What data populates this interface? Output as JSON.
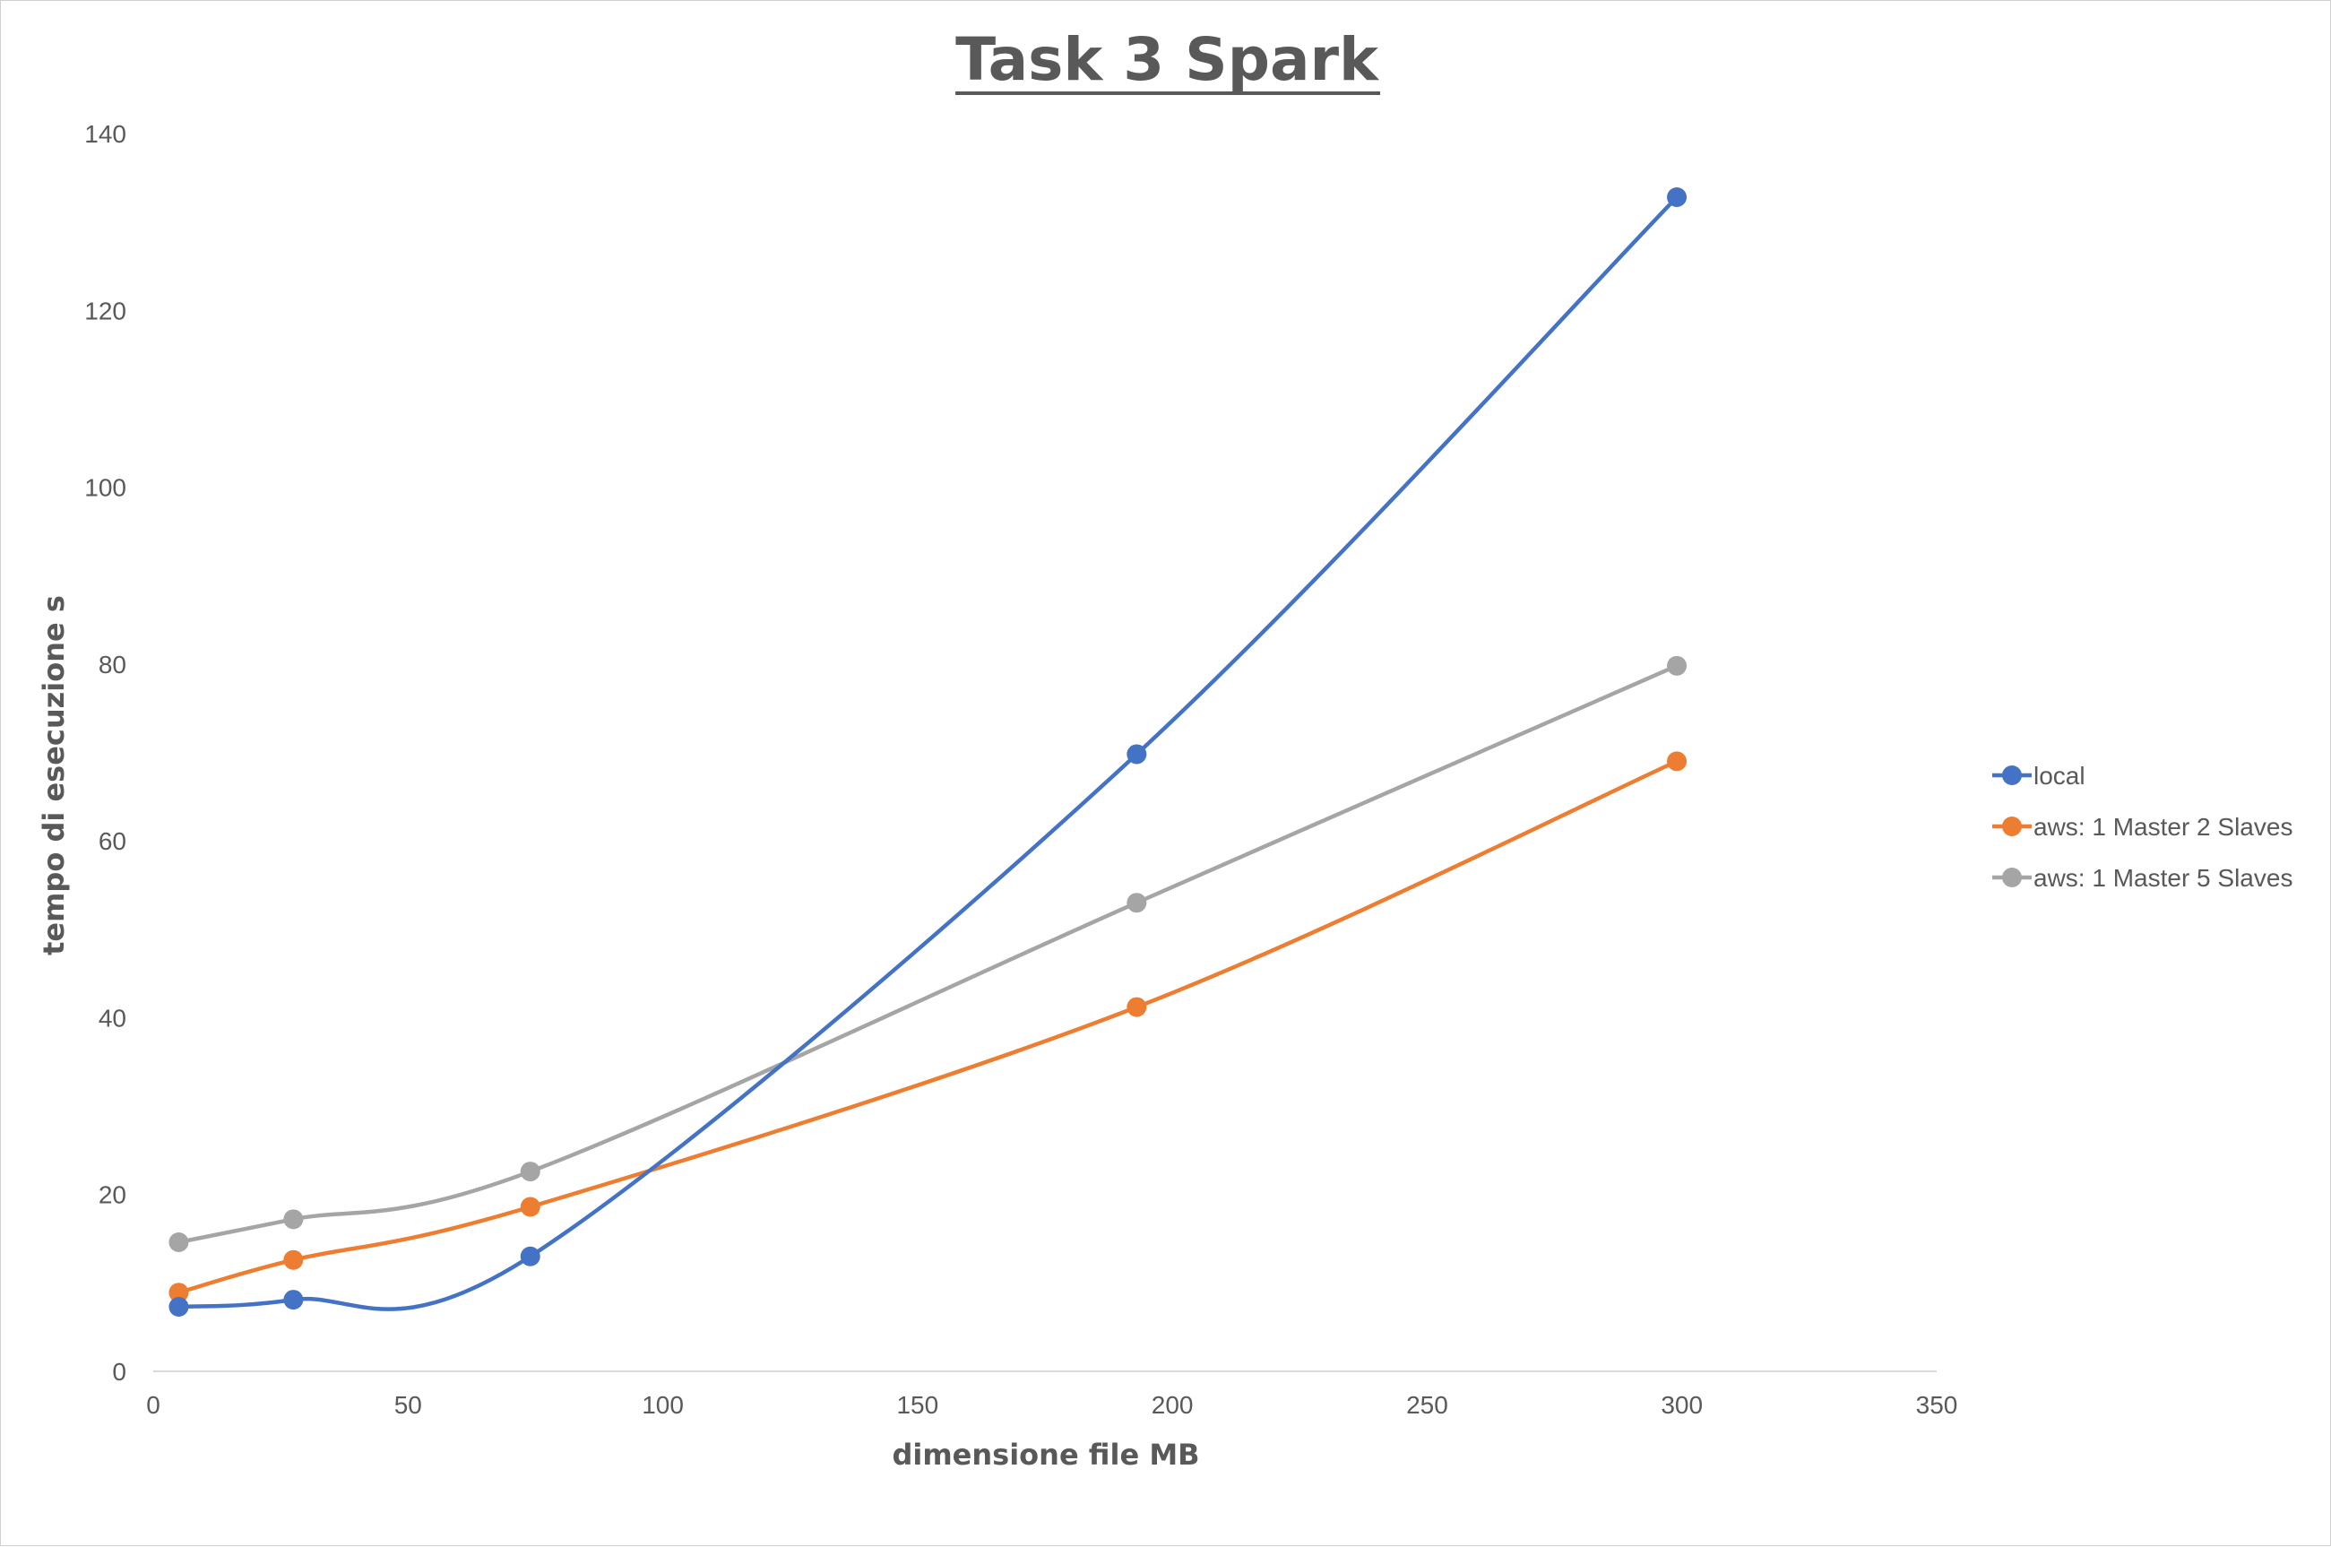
{
  "chart_data": {
    "type": "scatter",
    "title": "Task 3 Spark",
    "xlabel": "dimensione file MB",
    "ylabel": "tempo di esecuzione s",
    "xlim": [
      0,
      350
    ],
    "ylim": [
      0,
      140
    ],
    "xticks": [
      0,
      50,
      100,
      150,
      200,
      250,
      300,
      350
    ],
    "yticks": [
      0,
      20,
      40,
      60,
      80,
      100,
      120,
      140
    ],
    "grid": false,
    "legend_position": "right",
    "smooth_lines": true,
    "series": [
      {
        "name": "local",
        "color": "#4472c4",
        "x": [
          5,
          27.5,
          74,
          193,
          299
        ],
        "y": [
          7.3,
          8.1,
          13,
          69.8,
          132.8
        ]
      },
      {
        "name": "aws: 1 Master 2 Slaves",
        "color": "#ed7d31",
        "x": [
          5,
          27.5,
          74,
          193,
          299
        ],
        "y": [
          8.9,
          12.6,
          18.6,
          41.2,
          69
        ]
      },
      {
        "name": "aws: 1 Master 5 Slaves",
        "color": "#a5a5a5",
        "x": [
          5,
          27.5,
          74,
          193,
          299
        ],
        "y": [
          14.6,
          17.2,
          22.6,
          53,
          79.8
        ]
      }
    ]
  }
}
